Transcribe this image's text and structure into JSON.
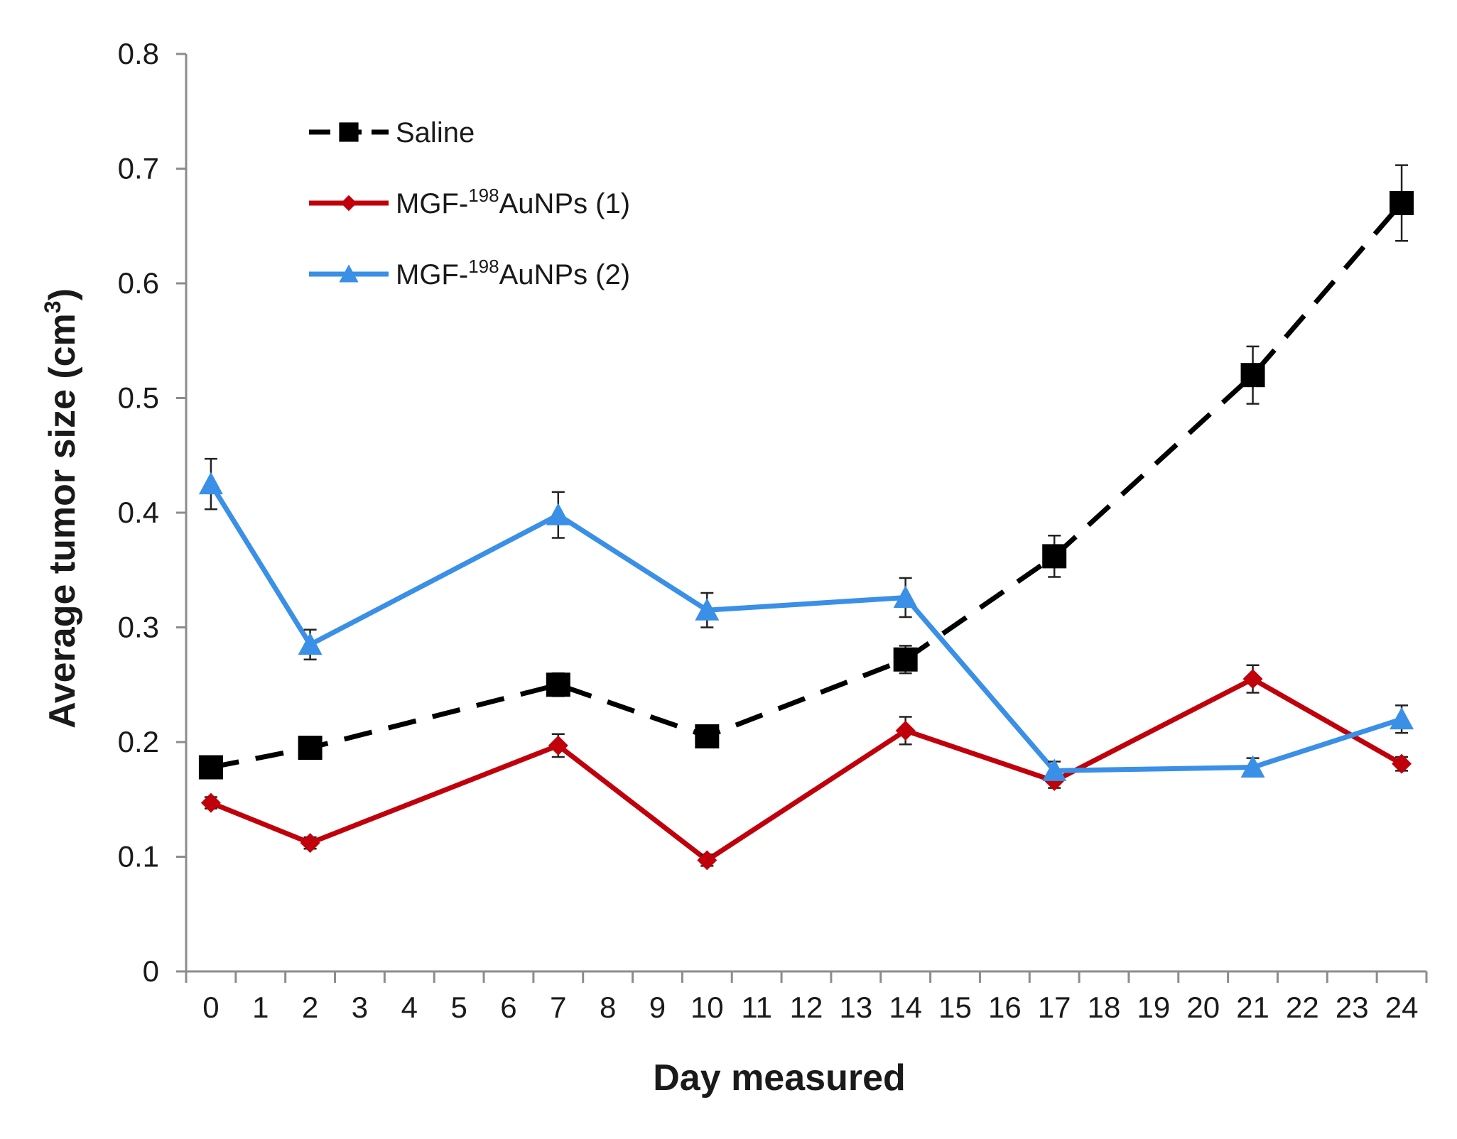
{
  "chart_data": {
    "type": "line",
    "title": "",
    "xlabel": "Day measured",
    "ylabel": "Average tumor size (cm",
    "ylabel_sup": "3",
    "ylabel_close": ")",
    "xlim": [
      -0.5,
      24.5
    ],
    "ylim": [
      0,
      0.8
    ],
    "x_ticks": [
      "0",
      "1",
      "2",
      "3",
      "4",
      "5",
      "6",
      "7",
      "8",
      "9",
      "10",
      "11",
      "12",
      "13",
      "14",
      "15",
      "16",
      "17",
      "18",
      "19",
      "20",
      "21",
      "22",
      "23",
      "24"
    ],
    "y_ticks": [
      "0",
      "0.1",
      "0.2",
      "0.3",
      "0.4",
      "0.5",
      "0.6",
      "0.7",
      "0.8"
    ],
    "grid": false,
    "legend_position": "top-left",
    "series": [
      {
        "name": "Saline",
        "name_parts": [
          "Saline",
          "",
          ""
        ],
        "color": "#000000",
        "line_style": "dashed",
        "marker": "square",
        "x": [
          0,
          2,
          7,
          10,
          14,
          17,
          21,
          24
        ],
        "values": [
          0.178,
          0.195,
          0.25,
          0.205,
          0.272,
          0.362,
          0.52,
          0.67
        ],
        "errors": [
          0.008,
          0.008,
          0.01,
          0.008,
          0.012,
          0.018,
          0.025,
          0.033
        ]
      },
      {
        "name": "MGF-198AuNPs (1)",
        "name_parts": [
          "MGF-",
          "198",
          "AuNPs (1)"
        ],
        "color": "#c0000b",
        "line_style": "solid",
        "marker": "diamond",
        "x": [
          0,
          2,
          7,
          10,
          14,
          17,
          21,
          24
        ],
        "values": [
          0.147,
          0.112,
          0.197,
          0.097,
          0.21,
          0.166,
          0.255,
          0.181
        ],
        "errors": [
          0.005,
          0.005,
          0.01,
          0.005,
          0.012,
          0.006,
          0.012,
          0.006
        ]
      },
      {
        "name": "MGF-198AuNPs (2)",
        "name_parts": [
          "MGF-",
          "198",
          "AuNPs (2)"
        ],
        "color": "#3a8fe6",
        "line_style": "solid",
        "marker": "triangle",
        "x": [
          0,
          2,
          7,
          10,
          14,
          17,
          21,
          24
        ],
        "values": [
          0.425,
          0.285,
          0.398,
          0.315,
          0.326,
          0.175,
          0.178,
          0.22
        ],
        "errors": [
          0.022,
          0.013,
          0.02,
          0.015,
          0.017,
          0.008,
          0.008,
          0.012
        ]
      }
    ]
  }
}
